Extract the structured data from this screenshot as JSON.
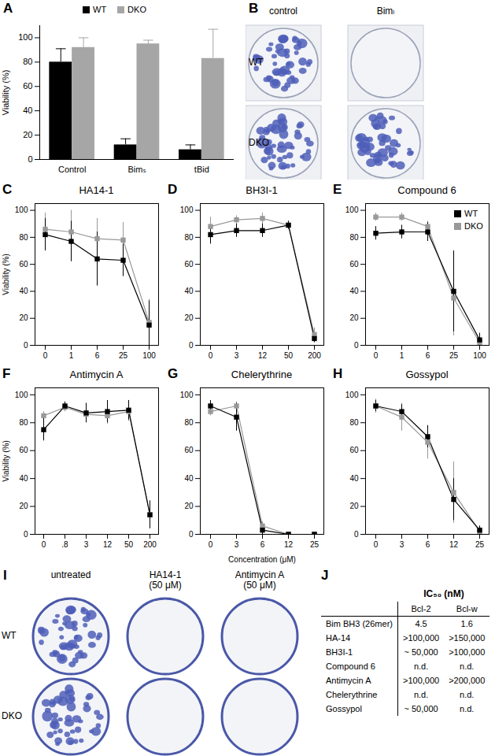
{
  "chart_data": [
    {
      "panel": "A",
      "type": "bar",
      "categories": [
        "Control",
        "Bimₛ",
        "tBid"
      ],
      "y_label": "Viability (%)",
      "ylim": [
        0,
        110
      ],
      "yticks": [
        0,
        20,
        40,
        60,
        80,
        100
      ],
      "legend": "top",
      "series": [
        {
          "name": "WT",
          "color": "#000000",
          "values": [
            80,
            12,
            8
          ],
          "errors": [
            11,
            5,
            4
          ]
        },
        {
          "name": "DKO",
          "color": "#a6a6a6",
          "values": [
            92,
            95,
            83
          ],
          "errors": [
            8,
            3,
            24
          ]
        }
      ]
    },
    {
      "panel": "C",
      "type": "line",
      "title": "HA14-1",
      "y_label": "Viability (%)",
      "categories": [
        "0",
        "1",
        "6",
        "25",
        "100"
      ],
      "ylim": [
        0,
        105
      ],
      "yticks": [
        0,
        20,
        40,
        60,
        80,
        100
      ],
      "series": [
        {
          "name": "WT",
          "color": "#000000",
          "marker": "square",
          "values": [
            82,
            77,
            64,
            63,
            15
          ],
          "errors": [
            12,
            15,
            20,
            12,
            18
          ]
        },
        {
          "name": "DKO",
          "color": "#999999",
          "marker": "square",
          "values": [
            86,
            84,
            79,
            78,
            17
          ],
          "errors": [
            12,
            16,
            15,
            13,
            17
          ]
        }
      ]
    },
    {
      "panel": "D",
      "type": "line",
      "title": "BH3I-1",
      "categories": [
        "0",
        "3",
        "12",
        "50",
        "200"
      ],
      "ylim": [
        0,
        105
      ],
      "yticks": [
        0,
        20,
        40,
        60,
        80,
        100
      ],
      "series": [
        {
          "name": "WT",
          "color": "#000000",
          "marker": "square",
          "values": [
            82,
            85,
            85,
            89,
            5
          ],
          "errors": [
            7,
            5,
            5,
            3,
            3
          ]
        },
        {
          "name": "DKO",
          "color": "#999999",
          "marker": "square",
          "values": [
            88,
            93,
            94,
            89,
            8
          ],
          "errors": [
            7,
            3,
            4,
            3,
            5
          ]
        }
      ]
    },
    {
      "panel": "E",
      "type": "line",
      "title": "Compound 6",
      "legend": "right",
      "categories": [
        "0",
        "1",
        "6",
        "25",
        "100"
      ],
      "ylim": [
        0,
        105
      ],
      "yticks": [
        0,
        20,
        40,
        60,
        80,
        100
      ],
      "series": [
        {
          "name": "WT",
          "color": "#000000",
          "marker": "square",
          "values": [
            83,
            84,
            84,
            40,
            4
          ],
          "errors": [
            5,
            5,
            7,
            30,
            5
          ]
        },
        {
          "name": "DKO",
          "color": "#999999",
          "marker": "square",
          "values": [
            95,
            95,
            88,
            35,
            2
          ],
          "errors": [
            3,
            3,
            4,
            28,
            3
          ]
        }
      ]
    },
    {
      "panel": "F",
      "type": "line",
      "title": "Antimycin A",
      "y_label": "Viability (%)",
      "categories": [
        "0",
        ".8",
        "3",
        "12",
        "50",
        "200"
      ],
      "ylim": [
        0,
        105
      ],
      "yticks": [
        0,
        20,
        40,
        60,
        80,
        100
      ],
      "series": [
        {
          "name": "WT",
          "color": "#000000",
          "marker": "square",
          "values": [
            75,
            92,
            87,
            88,
            89,
            14
          ],
          "errors": [
            8,
            3,
            7,
            8,
            7,
            10
          ]
        },
        {
          "name": "DKO",
          "color": "#999999",
          "marker": "square",
          "values": [
            85,
            91,
            86,
            85,
            88,
            14
          ],
          "errors": [
            3,
            3,
            6,
            6,
            7,
            10
          ]
        }
      ]
    },
    {
      "panel": "G",
      "type": "line",
      "title": "Chelerythrine",
      "x_label": "Concentration (μM)",
      "categories": [
        "0",
        "3",
        "6",
        "12",
        "25"
      ],
      "ylim": [
        0,
        105
      ],
      "yticks": [
        0,
        20,
        40,
        60,
        80,
        100
      ],
      "series": [
        {
          "name": "WT",
          "color": "#000000",
          "marker": "square",
          "values": [
            92,
            84,
            3,
            0,
            0
          ],
          "errors": [
            4,
            10,
            3,
            0,
            0
          ]
        },
        {
          "name": "DKO",
          "color": "#999999",
          "marker": "square",
          "values": [
            88,
            92,
            6,
            0,
            0
          ],
          "errors": [
            3,
            3,
            3,
            0,
            0
          ]
        }
      ]
    },
    {
      "panel": "H",
      "type": "line",
      "title": "Gossypol",
      "categories": [
        "0",
        "3",
        "6",
        "12",
        "25"
      ],
      "ylim": [
        0,
        105
      ],
      "yticks": [
        0,
        20,
        40,
        60,
        80,
        100
      ],
      "series": [
        {
          "name": "WT",
          "color": "#000000",
          "marker": "square",
          "values": [
            92,
            88,
            70,
            25,
            3
          ],
          "errors": [
            4,
            5,
            8,
            15,
            3
          ]
        },
        {
          "name": "DKO",
          "color": "#999999",
          "marker": "square",
          "values": [
            92,
            84,
            66,
            30,
            2
          ],
          "errors": [
            5,
            10,
            12,
            22,
            3
          ]
        }
      ]
    }
  ],
  "images": [
    {
      "panel": "B",
      "columns": [
        [
          "control"
        ],
        [
          "Bimₗ"
        ]
      ],
      "rows": [
        "WT",
        "DKO"
      ]
    },
    {
      "panel": "I",
      "columns": [
        [
          "untreated"
        ],
        [
          "HA14-1",
          "(50 μM)"
        ],
        [
          "Antimycin A",
          "(50 μM)"
        ]
      ],
      "rows": [
        "WT",
        "DKO"
      ]
    }
  ],
  "table": {
    "panel": "J",
    "title": "IC₅₀ (nM)",
    "columns": [
      "Bcl-2",
      "Bcl-w"
    ],
    "rows": [
      [
        "Bim BH3 (26mer)",
        "4.5",
        "1.6"
      ],
      [
        "HA-14",
        ">100,000",
        ">150,000"
      ],
      [
        "BH3I-1",
        "~ 50,000",
        ">100,000"
      ],
      [
        "Compound 6",
        "n.d.",
        "n.d."
      ],
      [
        "Antimycin A",
        ">100,000",
        ">200,000"
      ],
      [
        "Chelerythrine",
        "n.d.",
        "n.d."
      ],
      [
        "Gossypol",
        "~ 50,000",
        "n.d."
      ]
    ]
  }
}
